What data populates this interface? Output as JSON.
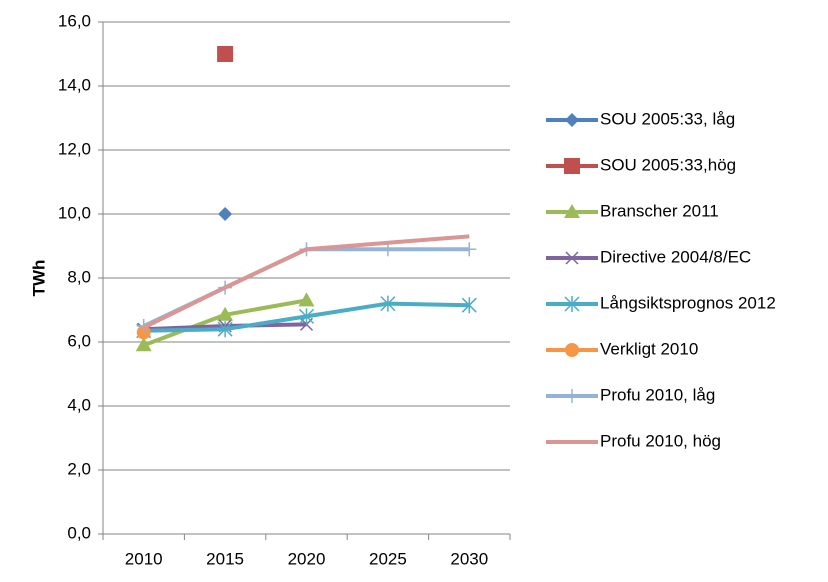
{
  "chart_data": {
    "type": "line",
    "y_label": "TWh",
    "categories": [
      "2010",
      "2015",
      "2020",
      "2025",
      "2030"
    ],
    "ylim": [
      0,
      16
    ],
    "yticks": [
      {
        "value": 0,
        "label": "0,0"
      },
      {
        "value": 2,
        "label": "2,0"
      },
      {
        "value": 4,
        "label": "4,0"
      },
      {
        "value": 6,
        "label": "6,0"
      },
      {
        "value": 8,
        "label": "8,0"
      },
      {
        "value": 10,
        "label": "10,0"
      },
      {
        "value": 12,
        "label": "12,0"
      },
      {
        "value": 14,
        "label": "14,0"
      },
      {
        "value": 16,
        "label": "16,0"
      }
    ],
    "grid": true,
    "legend": "right",
    "series": [
      {
        "name": "SOU 2005:33, låg",
        "color": "#4f81bd",
        "marker": "diamond",
        "values": [
          null,
          10.0,
          null,
          null,
          null
        ]
      },
      {
        "name": "SOU 2005:33,hög",
        "color": "#c0504d",
        "marker": "square",
        "values": [
          null,
          15.0,
          null,
          null,
          null
        ]
      },
      {
        "name": "Branscher 2011",
        "color": "#9bbb59",
        "marker": "triangle",
        "values": [
          5.9,
          6.85,
          7.3,
          null,
          null
        ]
      },
      {
        "name": "Directive 2004/8/EC",
        "color": "#8064a2",
        "marker": "x",
        "values": [
          6.4,
          6.5,
          6.55,
          null,
          null
        ]
      },
      {
        "name": "Långsiktsprognos 2012",
        "color": "#4bacc6",
        "marker": "star",
        "values": [
          6.35,
          6.4,
          6.8,
          7.2,
          7.15
        ]
      },
      {
        "name": "Verkligt 2010",
        "color": "#f79646",
        "marker": "circle",
        "values": [
          6.3,
          null,
          null,
          null,
          null
        ]
      },
      {
        "name": "Profu 2010, låg",
        "color": "#95b3d7",
        "marker": "plus",
        "values": [
          6.5,
          7.7,
          8.9,
          8.9,
          8.9
        ]
      },
      {
        "name": "Profu 2010, hög",
        "color": "#d99694",
        "marker": "none",
        "values": [
          6.45,
          7.7,
          8.9,
          9.1,
          9.3
        ]
      }
    ]
  }
}
